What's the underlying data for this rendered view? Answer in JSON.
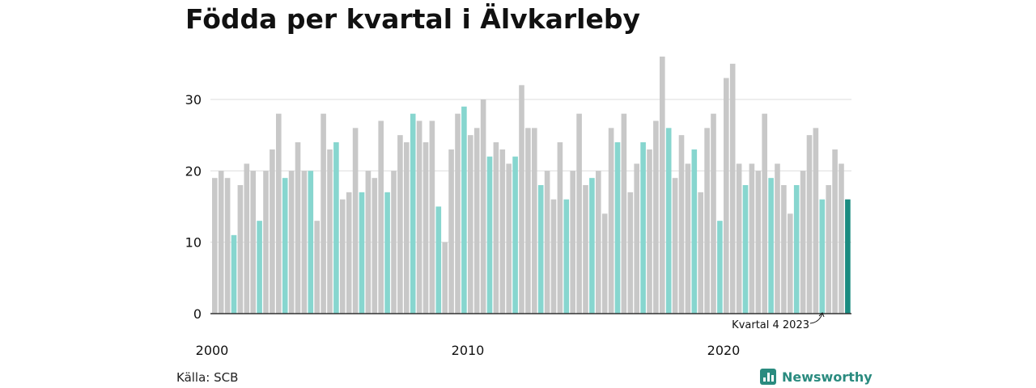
{
  "title": "Födda per kvartal i Älvkarleby",
  "source": "Källa: SCB",
  "brand": {
    "name": "Newsworthy",
    "icon": "newsworthy-logo-icon"
  },
  "colors": {
    "default": "#c8c8c8",
    "q4": "#87d6cf",
    "latest": "#1a8b80",
    "grid": "#dddddd",
    "axis": "#333333"
  },
  "chart_data": {
    "type": "bar",
    "title": "Födda per kvartal i Älvkarleby",
    "xlabel": "",
    "ylabel": "",
    "ylim": [
      0,
      36
    ],
    "yticks": [
      0,
      10,
      20,
      30
    ],
    "x_tick_labels": [
      "2000",
      "2010",
      "2020"
    ],
    "grid": true,
    "start": {
      "year": 2000,
      "quarter": 1
    },
    "values": [
      19,
      20,
      19,
      11,
      18,
      21,
      20,
      13,
      20,
      23,
      28,
      19,
      20,
      24,
      20,
      20,
      13,
      28,
      23,
      24,
      16,
      17,
      26,
      17,
      20,
      19,
      27,
      17,
      20,
      25,
      24,
      28,
      27,
      24,
      27,
      15,
      10,
      23,
      28,
      29,
      25,
      26,
      30,
      22,
      24,
      23,
      21,
      22,
      32,
      26,
      26,
      18,
      20,
      16,
      24,
      16,
      20,
      28,
      18,
      19,
      20,
      14,
      26,
      24,
      28,
      17,
      21,
      24,
      23,
      27,
      36,
      26,
      19,
      25,
      21,
      23,
      17,
      26,
      28,
      13,
      33,
      35,
      21,
      18,
      21,
      20,
      28,
      19,
      21,
      18,
      14,
      18,
      20,
      25,
      26,
      16,
      18,
      23,
      21,
      16
    ],
    "highlight": "Kvartal 4 i varje år",
    "annotation": "Kvartal 4 2023"
  }
}
